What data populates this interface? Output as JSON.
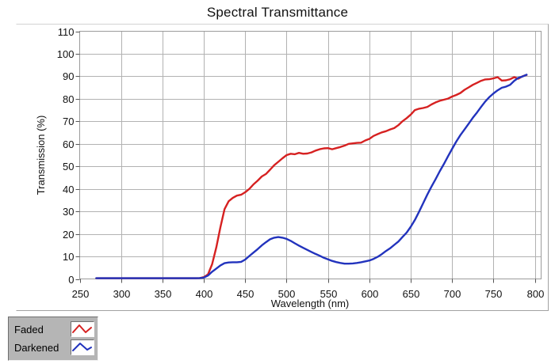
{
  "title": "Spectral Transmittance",
  "colors": {
    "faded": "#d62121",
    "darkened": "#2233bd",
    "grid": "#b2b2b2",
    "plot_border": "#9b9b9b",
    "tick": "#555555",
    "legend_bg": "#b5b5b5",
    "background": "#ffffff"
  },
  "legend": {
    "items": [
      {
        "label": "Faded",
        "color": "#d62121"
      },
      {
        "label": "Darkened",
        "color": "#2233bd"
      }
    ]
  },
  "chart_data": {
    "type": "line",
    "title": "Spectral Transmittance",
    "xlabel": "Wavelength (nm)",
    "ylabel": "Transmission (%)",
    "xlim": [
      250,
      807.5
    ],
    "ylim": [
      0,
      110
    ],
    "x_ticks": [
      250,
      300,
      350,
      400,
      450,
      500,
      550,
      600,
      650,
      700,
      750,
      800
    ],
    "y_ticks": [
      0,
      10,
      20,
      30,
      40,
      50,
      60,
      70,
      80,
      90,
      100,
      110
    ],
    "grid": true,
    "legend_position": "bottom-left",
    "x": [
      270,
      275,
      280,
      285,
      290,
      295,
      300,
      305,
      310,
      315,
      320,
      325,
      330,
      335,
      340,
      345,
      350,
      355,
      360,
      365,
      370,
      375,
      380,
      385,
      390,
      395,
      400,
      405,
      410,
      415,
      420,
      425,
      430,
      435,
      440,
      445,
      450,
      455,
      460,
      465,
      470,
      475,
      480,
      485,
      490,
      495,
      500,
      505,
      510,
      515,
      520,
      525,
      530,
      535,
      540,
      545,
      550,
      555,
      560,
      565,
      570,
      575,
      580,
      585,
      590,
      595,
      600,
      605,
      610,
      615,
      620,
      625,
      630,
      635,
      640,
      645,
      650,
      655,
      660,
      665,
      670,
      675,
      680,
      685,
      690,
      695,
      700,
      705,
      710,
      715,
      720,
      725,
      730,
      735,
      740,
      745,
      750,
      755,
      760,
      765,
      770,
      775,
      780,
      785,
      790
    ],
    "series": [
      {
        "name": "Faded",
        "color": "#d62121",
        "values": [
          0.3,
          0.3,
          0.3,
          0.3,
          0.3,
          0.3,
          0.3,
          0.3,
          0.3,
          0.3,
          0.3,
          0.3,
          0.3,
          0.3,
          0.3,
          0.3,
          0.3,
          0.3,
          0.3,
          0.3,
          0.3,
          0.3,
          0.3,
          0.3,
          0.3,
          0.4,
          0.8,
          2,
          6.5,
          14,
          23,
          31,
          34.5,
          36,
          37,
          37.4,
          38.5,
          40,
          42,
          43.6,
          45.5,
          46.6,
          48.5,
          50.5,
          52,
          53.6,
          55,
          55.6,
          55.4,
          56,
          55.6,
          55.7,
          56.2,
          57,
          57.6,
          58,
          58.1,
          57.6,
          58.1,
          58.6,
          59.2,
          60,
          60.2,
          60.4,
          60.5,
          61.5,
          62.2,
          63.5,
          64.3,
          65.1,
          65.6,
          66.4,
          67,
          68.3,
          70,
          71.4,
          73,
          75,
          75.6,
          75.9,
          76.4,
          77.5,
          78.4,
          79.1,
          79.6,
          80.1,
          81,
          81.7,
          82.6,
          84,
          85.1,
          86.2,
          87.1,
          88,
          88.6,
          88.7,
          89.1,
          89.6,
          88.1,
          88.2,
          88.7,
          89.6,
          88.9,
          90,
          90.6
        ]
      },
      {
        "name": "Darkened",
        "color": "#2233bd",
        "values": [
          0.3,
          0.3,
          0.3,
          0.3,
          0.3,
          0.3,
          0.3,
          0.3,
          0.3,
          0.3,
          0.3,
          0.3,
          0.3,
          0.3,
          0.3,
          0.3,
          0.3,
          0.3,
          0.3,
          0.3,
          0.3,
          0.3,
          0.3,
          0.3,
          0.3,
          0.4,
          0.6,
          1.5,
          3.2,
          4.6,
          6,
          7,
          7.3,
          7.4,
          7.4,
          7.6,
          8.6,
          10.2,
          11.7,
          13.2,
          14.9,
          16.3,
          17.6,
          18.3,
          18.6,
          18.3,
          17.8,
          16.9,
          15.8,
          14.8,
          13.8,
          12.9,
          12,
          11.1,
          10.3,
          9.4,
          8.7,
          8,
          7.5,
          7.1,
          6.8,
          6.8,
          6.9,
          7.1,
          7.4,
          7.8,
          8.2,
          8.9,
          9.8,
          11,
          12.4,
          13.6,
          15.1,
          16.6,
          18.6,
          20.6,
          23.2,
          26.2,
          29.8,
          33.6,
          37.5,
          41,
          44.3,
          47.8,
          51,
          54.5,
          57.8,
          61,
          63.9,
          66.4,
          69,
          71.6,
          73.9,
          76.4,
          78.8,
          80.8,
          82.4,
          83.8,
          84.9,
          85.4,
          86.2,
          88,
          89.3,
          89.9,
          90.7
        ]
      }
    ]
  }
}
